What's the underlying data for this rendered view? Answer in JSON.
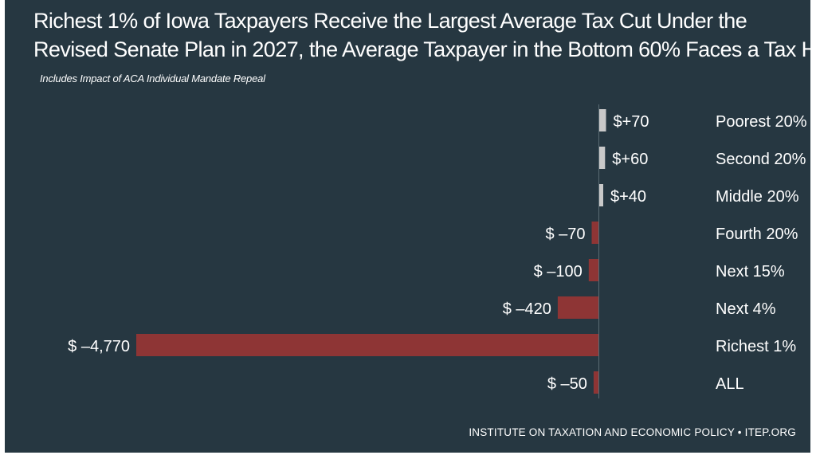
{
  "title_line1": "Richest 1% of Iowa Taxpayers Receive the Largest Average Tax Cut Under the",
  "title_line2": "Revised Senate Plan in 2027, the Average Taxpayer in the Bottom 60% Faces a Tax Hike",
  "subtitle": "Includes Impact of ACA Individual Mandate Repeal",
  "footer": "INSTITUTE ON TAXATION AND ECONOMIC POLICY • ITEP.ORG",
  "colors": {
    "background": "#263741",
    "positive": "#c9c9c9",
    "negative": "#8e3535",
    "text": "#ffffff"
  },
  "chart_data": {
    "type": "bar",
    "orientation": "horizontal",
    "categories": [
      "Poorest 20%",
      "Second 20%",
      "Middle 20%",
      "Fourth 20%",
      "Next 15%",
      "Next 4%",
      "Richest 1%",
      "ALL"
    ],
    "values": [
      70,
      60,
      40,
      -70,
      -100,
      -420,
      -4770,
      -50
    ],
    "value_labels": [
      "$+70",
      "$+60",
      "$+40",
      "$ –70",
      "$ –100",
      "$ –420",
      "$ –4,770",
      "$ –50"
    ],
    "title": "",
    "xlabel": "",
    "ylabel": "",
    "xlim": [
      -4770,
      70
    ],
    "grid": false,
    "legend": "none"
  }
}
